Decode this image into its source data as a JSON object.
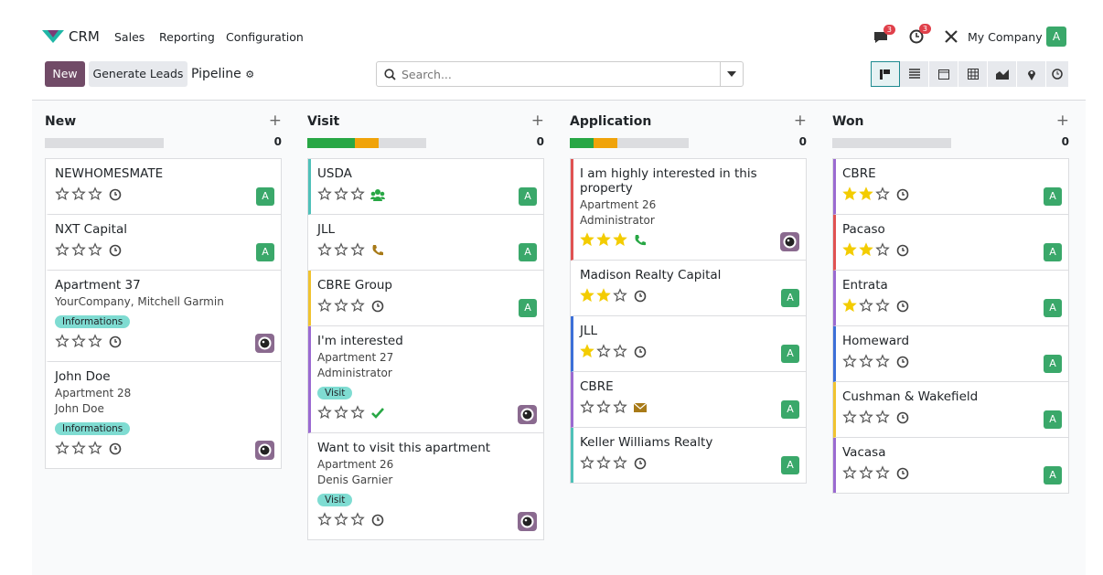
{
  "navbar": {
    "app": "CRM",
    "menus": [
      "Sales",
      "Reporting",
      "Configuration"
    ],
    "messages_badge": "3",
    "activities_badge": "3",
    "company": "My Company",
    "avatar": "A"
  },
  "control_panel": {
    "new_button": "New",
    "generate_button": "Generate Leads",
    "breadcrumb": "Pipeline",
    "search_placeholder": "Search..."
  },
  "columns": [
    {
      "title": "New",
      "count": "0",
      "progress": [],
      "cards": [
        {
          "title": "NEWHOMESMATE",
          "lines": [],
          "priority": 0,
          "activity": "clock",
          "avatar": "A"
        },
        {
          "title": "NXT Capital",
          "lines": [],
          "priority": 0,
          "activity": "clock",
          "avatar": "A"
        },
        {
          "title": "Apartment 37",
          "lines": [
            "YourCompany, Mitchell Garmin"
          ],
          "tag": "Informations",
          "priority": 0,
          "activity": "clock",
          "photo": true
        },
        {
          "title": "John Doe",
          "lines": [
            "Apartment 28",
            "John Doe"
          ],
          "tag": "Informations",
          "priority": 0,
          "activity": "clock",
          "photo": true
        }
      ]
    },
    {
      "title": "Visit",
      "count": "0",
      "progress": [
        {
          "color": "#28a745",
          "value": 40
        },
        {
          "color": "#f0a30a",
          "value": 20
        }
      ],
      "cards": [
        {
          "title": "USDA",
          "lines": [],
          "priority": 0,
          "activity": "meeting",
          "activity_color": "#28a745",
          "avatar": "A",
          "border": "#4fc1b9"
        },
        {
          "title": "JLL",
          "lines": [],
          "priority": 0,
          "activity": "call",
          "activity_color": "#a87a18",
          "avatar": "A"
        },
        {
          "title": "CBRE Group",
          "lines": [],
          "priority": 0,
          "activity": "clock",
          "avatar": "A",
          "border": "#f0c330"
        },
        {
          "title": "I'm interested",
          "lines": [
            "Apartment 27",
            "Administrator"
          ],
          "tag": "Visit",
          "priority": 0,
          "activity": "done",
          "activity_color": "#28a745",
          "photo": true,
          "border": "#9b6ad1"
        },
        {
          "title": "Want to visit this apartment",
          "lines": [
            "Apartment 26",
            "Denis Garnier"
          ],
          "tag": "Visit",
          "priority": 0,
          "activity": "clock",
          "photo": true
        }
      ]
    },
    {
      "title": "Application",
      "count": "0",
      "progress": [
        {
          "color": "#28a745",
          "value": 20
        },
        {
          "color": "#f0a30a",
          "value": 20
        }
      ],
      "cards": [
        {
          "title": "I am highly interested in this property",
          "lines": [
            "Apartment 26",
            "Administrator"
          ],
          "priority": 3,
          "activity": "call",
          "activity_color": "#28a745",
          "photo": true,
          "border": "#e05252"
        },
        {
          "title": "Madison Realty Capital",
          "lines": [],
          "priority": 2,
          "activity": "clock",
          "avatar": "A"
        },
        {
          "title": "JLL",
          "lines": [],
          "priority": 1,
          "activity": "clock",
          "avatar": "A",
          "border": "#3c6fd8"
        },
        {
          "title": "CBRE",
          "lines": [],
          "priority": 0,
          "activity": "email",
          "activity_color": "#a87a18",
          "avatar": "A",
          "border": "#9b6ad1"
        },
        {
          "title": "Keller Williams Realty",
          "lines": [],
          "priority": 0,
          "activity": "clock",
          "avatar": "A",
          "border": "#4fc1b9"
        }
      ]
    },
    {
      "title": "Won",
      "count": "0",
      "progress": [],
      "cards": [
        {
          "title": "CBRE",
          "lines": [],
          "priority": 2,
          "activity": "clock",
          "avatar": "A",
          "border": "#9b6ad1"
        },
        {
          "title": "Pacaso",
          "lines": [],
          "priority": 2,
          "activity": "clock",
          "avatar": "A",
          "border": "#e05252"
        },
        {
          "title": "Entrata",
          "lines": [],
          "priority": 1,
          "activity": "clock",
          "avatar": "A",
          "border": "#9b6ad1"
        },
        {
          "title": "Homeward",
          "lines": [],
          "priority": 0,
          "activity": "clock",
          "avatar": "A",
          "border": "#3c6fd8"
        },
        {
          "title": "Cushman & Wakefield",
          "lines": [],
          "priority": 0,
          "activity": "clock",
          "avatar": "A",
          "border": "#f0c330"
        },
        {
          "title": "Vacasa",
          "lines": [],
          "priority": 0,
          "activity": "clock",
          "avatar": "A",
          "border": "#9b6ad1"
        }
      ]
    }
  ]
}
